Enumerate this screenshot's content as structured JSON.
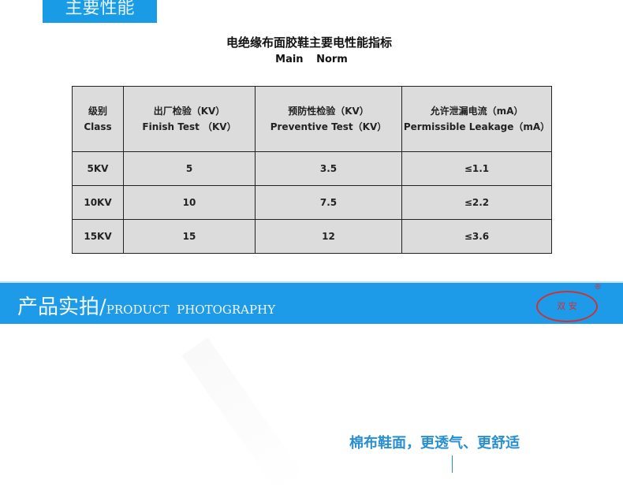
{
  "section_tag": "主要性能",
  "title": "电绝缘布面胶鞋主要电性能指标",
  "subtitle": "Main Norm",
  "table": {
    "headers": [
      {
        "cn": "级别",
        "en": "Class"
      },
      {
        "cn": "出厂检验（KV）",
        "en": "Finish Test （KV）"
      },
      {
        "cn": "预防性检验（KV）",
        "en": "Preventive Test（KV）"
      },
      {
        "cn": "允许泄漏电流（mA）",
        "en": "Permissible Leakage（mA）"
      }
    ],
    "rows": [
      [
        "5KV",
        "5",
        "3.5",
        "≤1.1"
      ],
      [
        "10KV",
        "10",
        "7.5",
        "≤2.2"
      ],
      [
        "15KV",
        "15",
        "12",
        "≤3.6"
      ]
    ]
  },
  "banner": {
    "cn": "产品实拍/",
    "en": "PRODUCT  PHOTOGRAPHY",
    "logo_text": "双 安",
    "registered": "®",
    "color": "#1e9be8"
  },
  "caption": "棉布鞋面，更透气、更舒适"
}
